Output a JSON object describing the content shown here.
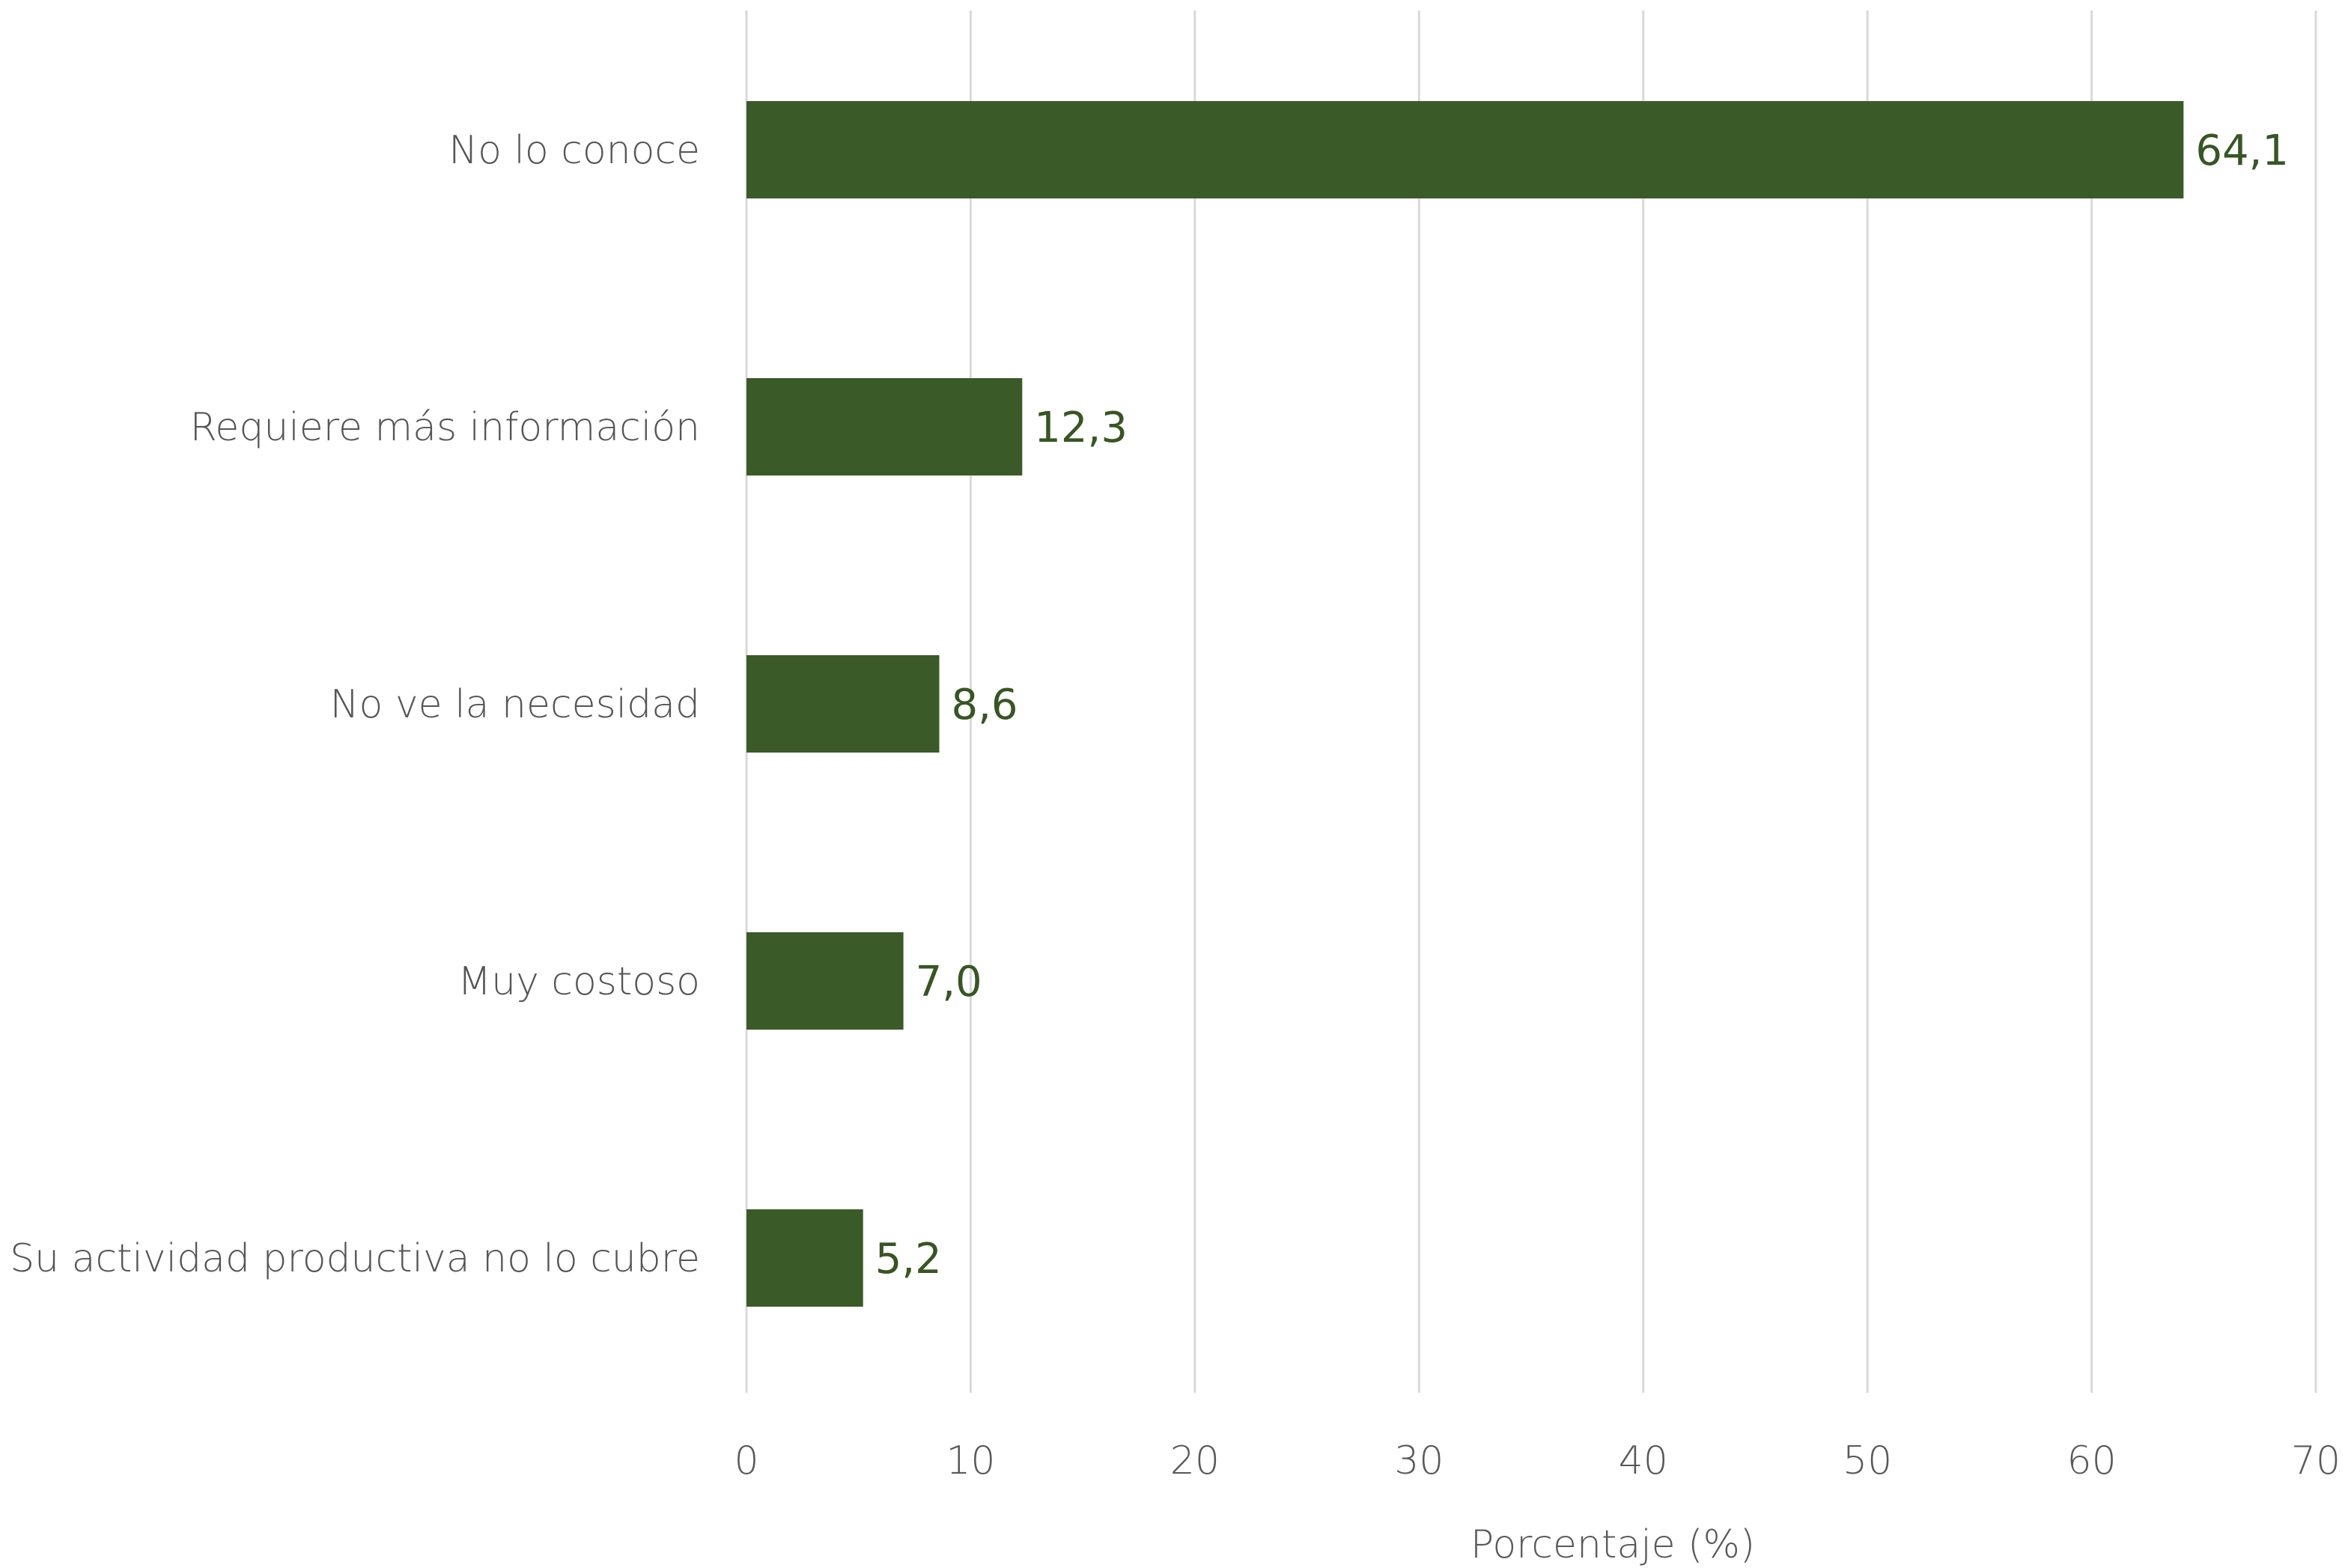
{
  "chart_data": {
    "type": "bar",
    "orientation": "horizontal",
    "categories": [
      "No lo conoce",
      "Requiere más información",
      "No ve la necesidad",
      "Muy costoso",
      "Su actividad productiva no lo cubre"
    ],
    "values": [
      64.1,
      12.3,
      8.6,
      7.0,
      5.2
    ],
    "value_labels": [
      "64,1",
      "12,3",
      "8,6",
      "7,0",
      "5,2"
    ],
    "title": "",
    "xlabel": "Porcentaje (%)",
    "ylabel": "",
    "xlim": [
      0,
      70
    ],
    "x_ticks": [
      0,
      10,
      20,
      30,
      40,
      50,
      60,
      70
    ],
    "x_tick_labels": [
      "0",
      "10",
      "20",
      "30",
      "40",
      "50",
      "60",
      "70"
    ],
    "grid": "vertical",
    "legend": "none",
    "bar_color": "#3a5a27",
    "value_label_color": "#375623"
  }
}
